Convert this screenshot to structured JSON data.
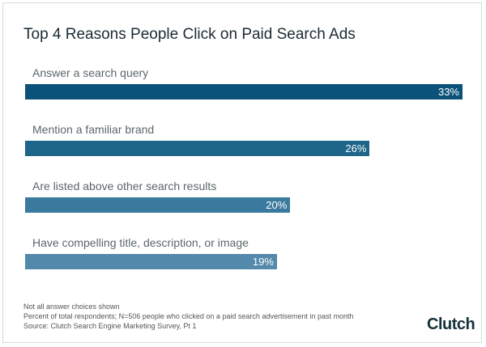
{
  "chart_data": {
    "type": "bar",
    "orientation": "horizontal",
    "title": "Top 4 Reasons People Click on Paid Search Ads",
    "categories": [
      "Answer a search query",
      "Mention a familiar brand",
      "Are listed above other search results",
      "Have compelling title, description, or image"
    ],
    "values": [
      33,
      26,
      20,
      19
    ],
    "value_labels": [
      "33%",
      "26%",
      "20%",
      "19%"
    ],
    "unit": "%",
    "colors": [
      "#0a527a",
      "#1d6589",
      "#3a7a9e",
      "#5389ab"
    ],
    "xlim": [
      0,
      33
    ],
    "grid": false
  },
  "notes": [
    "Not all answer choices shown",
    "Percent of total respondents; N=506 people who clicked on a paid search advertisement in past month",
    "Source: Clutch Search Engine Marketing Survey, Pt 1"
  ],
  "logo": "Clutch"
}
